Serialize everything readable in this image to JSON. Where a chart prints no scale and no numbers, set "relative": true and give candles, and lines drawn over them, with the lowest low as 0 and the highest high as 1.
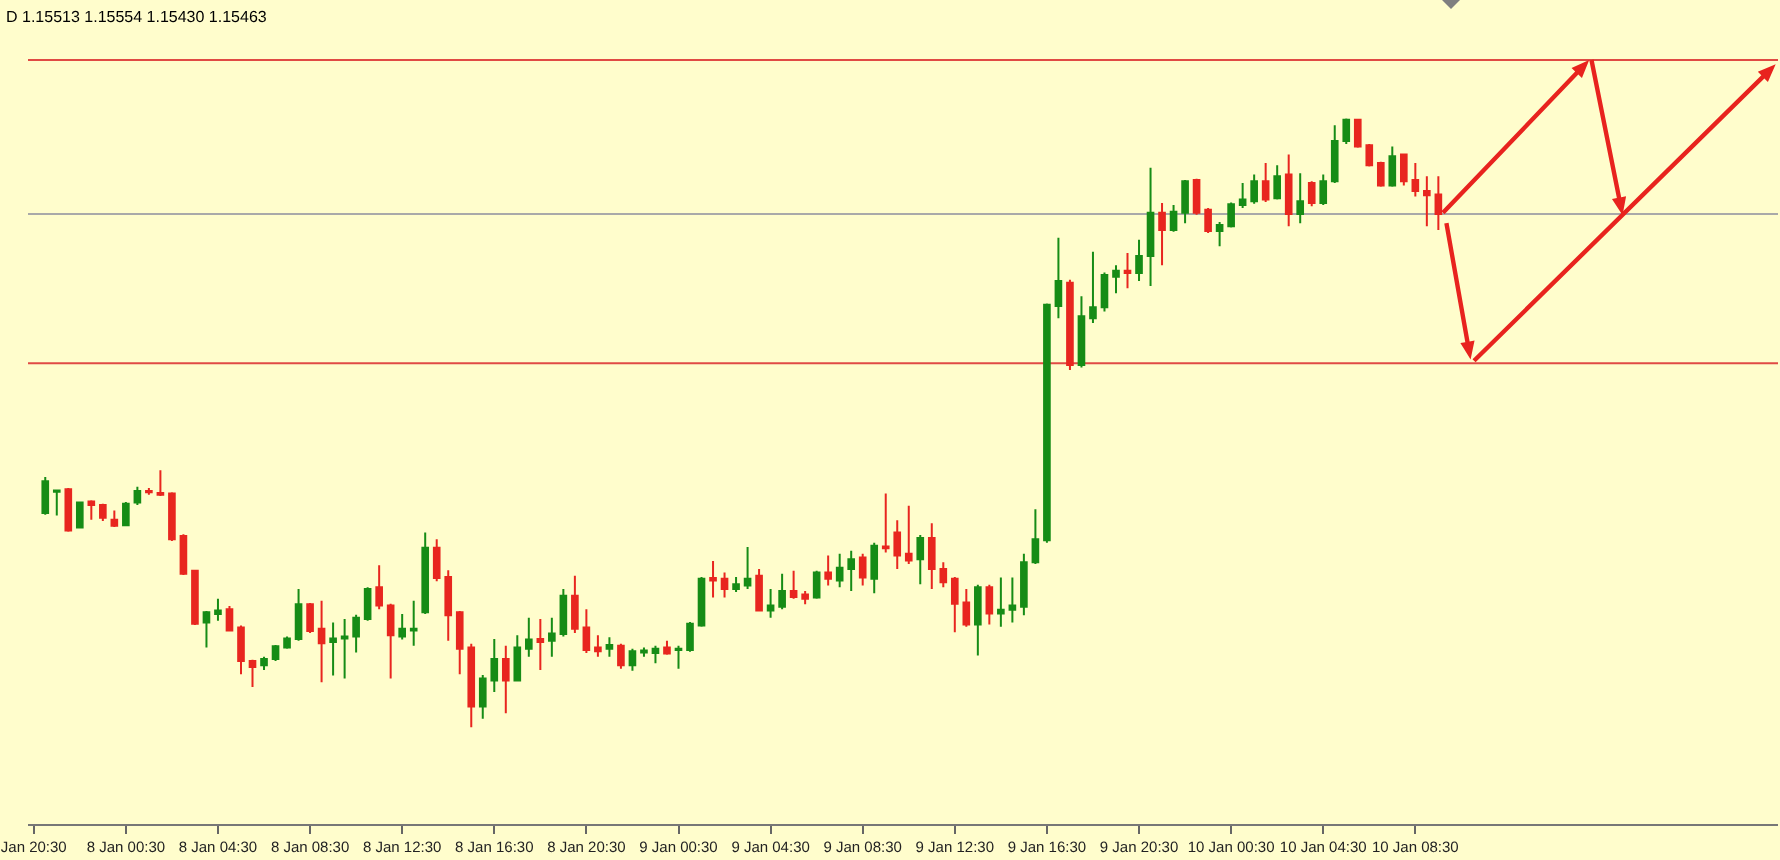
{
  "chart_data": {
    "type": "candlestick",
    "relative": true,
    "annotations": [
      "D 1.15513 1.15554 1.15430 1.15463"
    ],
    "categories": [
      "Jan 20:30",
      null,
      null,
      null,
      null,
      null,
      null,
      null,
      "8 Jan 00:30",
      null,
      null,
      null,
      null,
      null,
      null,
      null,
      "8 Jan 04:30",
      null,
      null,
      null,
      null,
      null,
      null,
      null,
      "8 Jan 08:30",
      null,
      null,
      null,
      null,
      null,
      null,
      null,
      "8 Jan 12:30",
      null,
      null,
      null,
      null,
      null,
      null,
      null,
      "8 Jan 16:30",
      null,
      null,
      null,
      null,
      null,
      null,
      null,
      "8 Jan 20:30",
      null,
      null,
      null,
      null,
      null,
      null,
      null,
      "9 Jan 00:30",
      null,
      null,
      null,
      null,
      null,
      null,
      null,
      "9 Jan 04:30",
      null,
      null,
      null,
      null,
      null,
      null,
      null,
      "9 Jan 08:30",
      null,
      null,
      null,
      null,
      null,
      null,
      null,
      "9 Jan 12:30",
      null,
      null,
      null,
      null,
      null,
      null,
      null,
      "9 Jan 16:30",
      null,
      null,
      null,
      null,
      null,
      null,
      null,
      "9 Jan 20:30",
      null,
      null,
      null,
      null,
      null,
      null,
      null,
      "10 Jan 00:30",
      null,
      null,
      null,
      null,
      null,
      null,
      null,
      "10 Jan 04:30",
      null,
      null,
      null,
      null,
      null,
      null,
      null,
      "10 Jan 08:30",
      null,
      null,
      null,
      null,
      null,
      null,
      null,
      null,
      null,
      null,
      null,
      null,
      null,
      null,
      null,
      null,
      null,
      null,
      null,
      null,
      null,
      null,
      null,
      null,
      null,
      null,
      null,
      null,
      null,
      null,
      null
    ],
    "ohlc": [
      null,
      [
        0.352,
        0.411,
        0.349,
        0.404
      ],
      [
        0.387,
        0.39,
        0.348,
        0.389
      ],
      [
        0.391,
        0.393,
        0.321,
        0.323
      ],
      [
        0.328,
        0.37,
        0.327,
        0.369
      ],
      [
        0.371,
        0.373,
        0.341,
        0.365
      ],
      [
        0.365,
        0.367,
        0.339,
        0.344
      ],
      [
        0.341,
        0.356,
        0.329,
        0.331
      ],
      [
        0.332,
        0.37,
        0.33,
        0.367
      ],
      [
        0.369,
        0.395,
        0.365,
        0.388
      ],
      [
        0.388,
        0.393,
        0.382,
        0.386
      ],
      [
        0.385,
        0.422,
        0.38,
        0.382
      ],
      [
        0.384,
        0.386,
        0.306,
        0.309
      ],
      [
        0.314,
        0.317,
        0.25,
        0.252
      ],
      [
        0.257,
        0.258,
        0.168,
        0.17
      ],
      [
        0.172,
        0.191,
        0.131,
        0.189
      ],
      [
        0.186,
        0.211,
        0.175,
        0.192
      ],
      [
        0.194,
        0.199,
        0.158,
        0.159
      ],
      [
        0.164,
        0.167,
        0.087,
        0.109
      ],
      [
        0.109,
        0.111,
        0.066,
        0.099
      ],
      [
        0.102,
        0.116,
        0.094,
        0.112
      ],
      [
        0.112,
        0.135,
        0.109,
        0.133
      ],
      [
        0.131,
        0.149,
        0.129,
        0.146
      ],
      [
        0.145,
        0.227,
        0.142,
        0.202
      ],
      [
        0.202,
        0.204,
        0.155,
        0.158
      ],
      [
        0.162,
        0.208,
        0.074,
        0.138
      ],
      [
        0.14,
        0.172,
        0.085,
        0.146
      ],
      [
        0.146,
        0.178,
        0.08,
        0.149
      ],
      [
        0.149,
        0.185,
        0.123,
        0.18
      ],
      [
        0.178,
        0.23,
        0.175,
        0.227
      ],
      [
        0.23,
        0.266,
        0.194,
        0.2
      ],
      [
        0.2,
        0.203,
        0.08,
        0.151
      ],
      [
        0.149,
        0.186,
        0.144,
        0.162
      ],
      [
        0.159,
        0.208,
        0.134,
        0.162
      ],
      [
        0.189,
        0.32,
        0.186,
        0.295
      ],
      [
        0.295,
        0.309,
        0.24,
        0.245
      ],
      [
        0.247,
        0.258,
        0.142,
        0.184
      ],
      [
        0.189,
        0.191,
        0.087,
        0.129
      ],
      [
        0.131,
        0.137,
        0,
        0.034
      ],
      [
        0.034,
        0.086,
        0.014,
        0.08
      ],
      [
        0.077,
        0.145,
        0.058,
        0.112
      ],
      [
        0.112,
        0.134,
        0.023,
        0.077
      ],
      [
        0.077,
        0.151,
        0.075,
        0.131
      ],
      [
        0.129,
        0.18,
        0.116,
        0.144
      ],
      [
        0.145,
        0.178,
        0.094,
        0.14
      ],
      [
        0.142,
        0.18,
        0.116,
        0.154
      ],
      [
        0.153,
        0.227,
        0.149,
        0.216
      ],
      [
        0.216,
        0.249,
        0.155,
        0.162
      ],
      [
        0.164,
        0.194,
        0.122,
        0.127
      ],
      [
        0.131,
        0.151,
        0.116,
        0.125
      ],
      [
        0.129,
        0.148,
        0.116,
        0.135
      ],
      [
        0.134,
        0.137,
        0.096,
        0.102
      ],
      [
        0.102,
        0.129,
        0.093,
        0.125
      ],
      [
        0.123,
        0.131,
        0.116,
        0.126
      ],
      [
        0.122,
        0.134,
        0.105,
        0.129
      ],
      [
        0.131,
        0.142,
        0.119,
        0.121
      ],
      [
        0.127,
        0.134,
        0.096,
        0.129
      ],
      [
        0.127,
        0.173,
        0.124,
        0.17
      ],
      [
        0.167,
        0.247,
        0.165,
        0.244
      ],
      [
        0.245,
        0.273,
        0.213,
        0.241
      ],
      [
        0.244,
        0.254,
        0.213,
        0.227
      ],
      [
        0.227,
        0.247,
        0.222,
        0.235
      ],
      [
        0.233,
        0.296,
        0.227,
        0.244
      ],
      [
        0.249,
        0.26,
        0.19,
        0.192
      ],
      [
        0.192,
        0.227,
        0.18,
        0.2
      ],
      [
        0.198,
        0.252,
        0.194,
        0.224
      ],
      [
        0.224,
        0.257,
        0.211,
        0.214
      ],
      [
        0.218,
        0.224,
        0.202,
        0.211
      ],
      [
        0.213,
        0.257,
        0.211,
        0.254
      ],
      [
        0.254,
        0.282,
        0.233,
        0.244
      ],
      [
        0.241,
        0.285,
        0.23,
        0.262
      ],
      [
        0.26,
        0.29,
        0.224,
        0.276
      ],
      [
        0.279,
        0.285,
        0.233,
        0.246
      ],
      [
        0.244,
        0.303,
        0.22,
        0.298
      ],
      [
        0.297,
        0.384,
        0.287,
        0.294
      ],
      [
        0.32,
        0.34,
        0.26,
        0.282
      ],
      [
        0.285,
        0.364,
        0.268,
        0.274
      ],
      [
        0.276,
        0.316,
        0.235,
        0.311
      ],
      [
        0.311,
        0.335,
        0.227,
        0.26
      ],
      [
        0.26,
        0.271,
        0.23,
        0.238
      ],
      [
        0.244,
        0.247,
        0.156,
        0.203
      ],
      [
        0.205,
        0.227,
        0.165,
        0.169
      ],
      [
        0.169,
        0.234,
        0.118,
        0.23
      ],
      [
        0.23,
        0.234,
        0.169,
        0.187
      ],
      [
        0.187,
        0.246,
        0.165,
        0.193
      ],
      [
        0.193,
        0.246,
        0.172,
        0.2
      ],
      [
        0.198,
        0.285,
        0.184,
        0.271
      ],
      [
        0.271,
        0.358,
        0.268,
        0.309
      ],
      [
        0.307,
        0.696,
        0.303,
        0.694
      ],
      [
        0.692,
        0.804,
        0.672,
        0.733
      ],
      [
        0.73,
        0.735,
        0.587,
        0.595
      ],
      [
        0.595,
        0.708,
        0.591,
        0.675
      ],
      [
        0.672,
        0.781,
        0.664,
        0.69
      ],
      [
        0.69,
        0.747,
        0.683,
        0.743
      ],
      [
        0.74,
        0.759,
        0.713,
        0.75
      ],
      [
        0.75,
        0.779,
        0.721,
        0.746
      ],
      [
        0.746,
        0.801,
        0.733,
        0.774
      ],
      [
        0.774,
        0.919,
        0.725,
        0.845
      ],
      [
        0.845,
        0.861,
        0.759,
        0.817
      ],
      [
        0.817,
        0.858,
        0.814,
        0.847
      ],
      [
        0.845,
        0.899,
        0.828,
        0.897
      ],
      [
        0.899,
        0.901,
        0.842,
        0.845
      ],
      [
        0.85,
        0.853,
        0.812,
        0.815
      ],
      [
        0.815,
        0.83,
        0.79,
        0.825
      ],
      [
        0.823,
        0.862,
        0.821,
        0.859
      ],
      [
        0.858,
        0.894,
        0.853,
        0.867
      ],
      [
        0.864,
        0.908,
        0.86,
        0.897
      ],
      [
        0.897,
        0.927,
        0.863,
        0.867
      ],
      [
        0.869,
        0.923,
        0.867,
        0.905
      ],
      [
        0.908,
        0.941,
        0.823,
        0.843
      ],
      [
        0.843,
        0.91,
        0.828,
        0.864
      ],
      [
        0.894,
        0.897,
        0.856,
        0.861
      ],
      [
        0.861,
        0.908,
        0.858,
        0.897
      ],
      [
        0.897,
        0.989,
        0.894,
        0.963
      ],
      [
        0.963,
        1,
        0.958,
        0.998
      ],
      [
        0.998,
        0.999,
        0.952,
        0.954
      ],
      [
        0.956,
        0.958,
        0.921,
        0.923
      ],
      [
        0.927,
        0.929,
        0.888,
        0.89
      ],
      [
        0.89,
        0.954,
        0.888,
        0.938
      ],
      [
        0.941,
        0.942,
        0.89,
        0.897
      ],
      [
        0.899,
        0.927,
        0.872,
        0.881
      ],
      [
        0.881,
        0.905,
        0.823,
        0.874
      ],
      [
        0.875,
        0.905,
        0.817,
        0.843
      ],
      null,
      null,
      null,
      null,
      null,
      null,
      null,
      null,
      null,
      null,
      null,
      null,
      null,
      null,
      null,
      null,
      null,
      null,
      null,
      null,
      null,
      null,
      null,
      null,
      null,
      null,
      null,
      null,
      null
    ],
    "colors": [
      null,
      "#168c16",
      "#168c16",
      "#e8261f",
      "#168c16",
      "#e8261f",
      "#e8261f",
      "#e8261f",
      "#168c16",
      "#168c16",
      "#e8261f",
      "#e8261f",
      "#e8261f",
      "#e8261f",
      "#e8261f",
      "#168c16",
      "#168c16",
      "#e8261f",
      "#e8261f",
      "#e8261f",
      "#168c16",
      "#168c16",
      "#168c16",
      "#168c16",
      "#e8261f",
      "#e8261f",
      "#168c16",
      "#168c16",
      "#168c16",
      "#168c16",
      "#e8261f",
      "#e8261f",
      "#168c16",
      "#168c16",
      "#168c16",
      "#e8261f",
      "#e8261f",
      "#e8261f",
      "#e8261f",
      "#168c16",
      "#168c16",
      "#e8261f",
      "#168c16",
      "#168c16",
      "#e8261f",
      "#168c16",
      "#168c16",
      "#e8261f",
      "#e8261f",
      "#e8261f",
      "#168c16",
      "#e8261f",
      "#168c16",
      "#168c16",
      "#168c16",
      "#e8261f",
      "#168c16",
      "#168c16",
      "#168c16",
      "#e8261f",
      "#e8261f",
      "#168c16",
      "#168c16",
      "#e8261f",
      "#168c16",
      "#168c16",
      "#e8261f",
      "#e8261f",
      "#168c16",
      "#e8261f",
      "#168c16",
      "#168c16",
      "#e8261f",
      "#168c16",
      "#e8261f",
      "#e8261f",
      "#e8261f",
      "#168c16",
      "#e8261f",
      "#e8261f",
      "#e8261f",
      "#e8261f",
      "#168c16",
      "#e8261f",
      "#168c16",
      "#168c16",
      "#168c16",
      "#168c16",
      "#168c16",
      "#168c16",
      "#e8261f",
      "#168c16",
      "#168c16",
      "#168c16",
      "#168c16",
      "#e8261f",
      "#168c16",
      "#168c16",
      "#e8261f",
      "#168c16",
      "#168c16",
      "#e8261f",
      "#e8261f",
      "#168c16",
      "#168c16",
      "#168c16",
      "#168c16",
      "#e8261f",
      "#168c16",
      "#e8261f",
      "#168c16",
      "#e8261f",
      "#168c16",
      "#168c16",
      "#168c16",
      "#e8261f",
      "#e8261f",
      "#e8261f",
      "#168c16",
      "#e8261f",
      "#e8261f",
      "#e8261f",
      "#e8261f",
      null,
      null,
      null,
      null,
      null,
      null,
      null,
      null,
      null,
      null,
      null,
      null,
      null,
      null,
      null,
      null,
      null,
      null,
      null,
      null,
      null,
      null,
      null,
      null,
      null,
      null,
      null,
      null,
      null
    ],
    "ref_lines": [
      {
        "axis": "y",
        "value": 1.096,
        "color": "#e04a44"
      },
      {
        "axis": "y",
        "value": 0.843,
        "color": "#a9a9a9"
      },
      {
        "axis": "y",
        "value": 0.598,
        "color": "#e04a44"
      }
    ],
    "tick_labels": "x"
  }
}
